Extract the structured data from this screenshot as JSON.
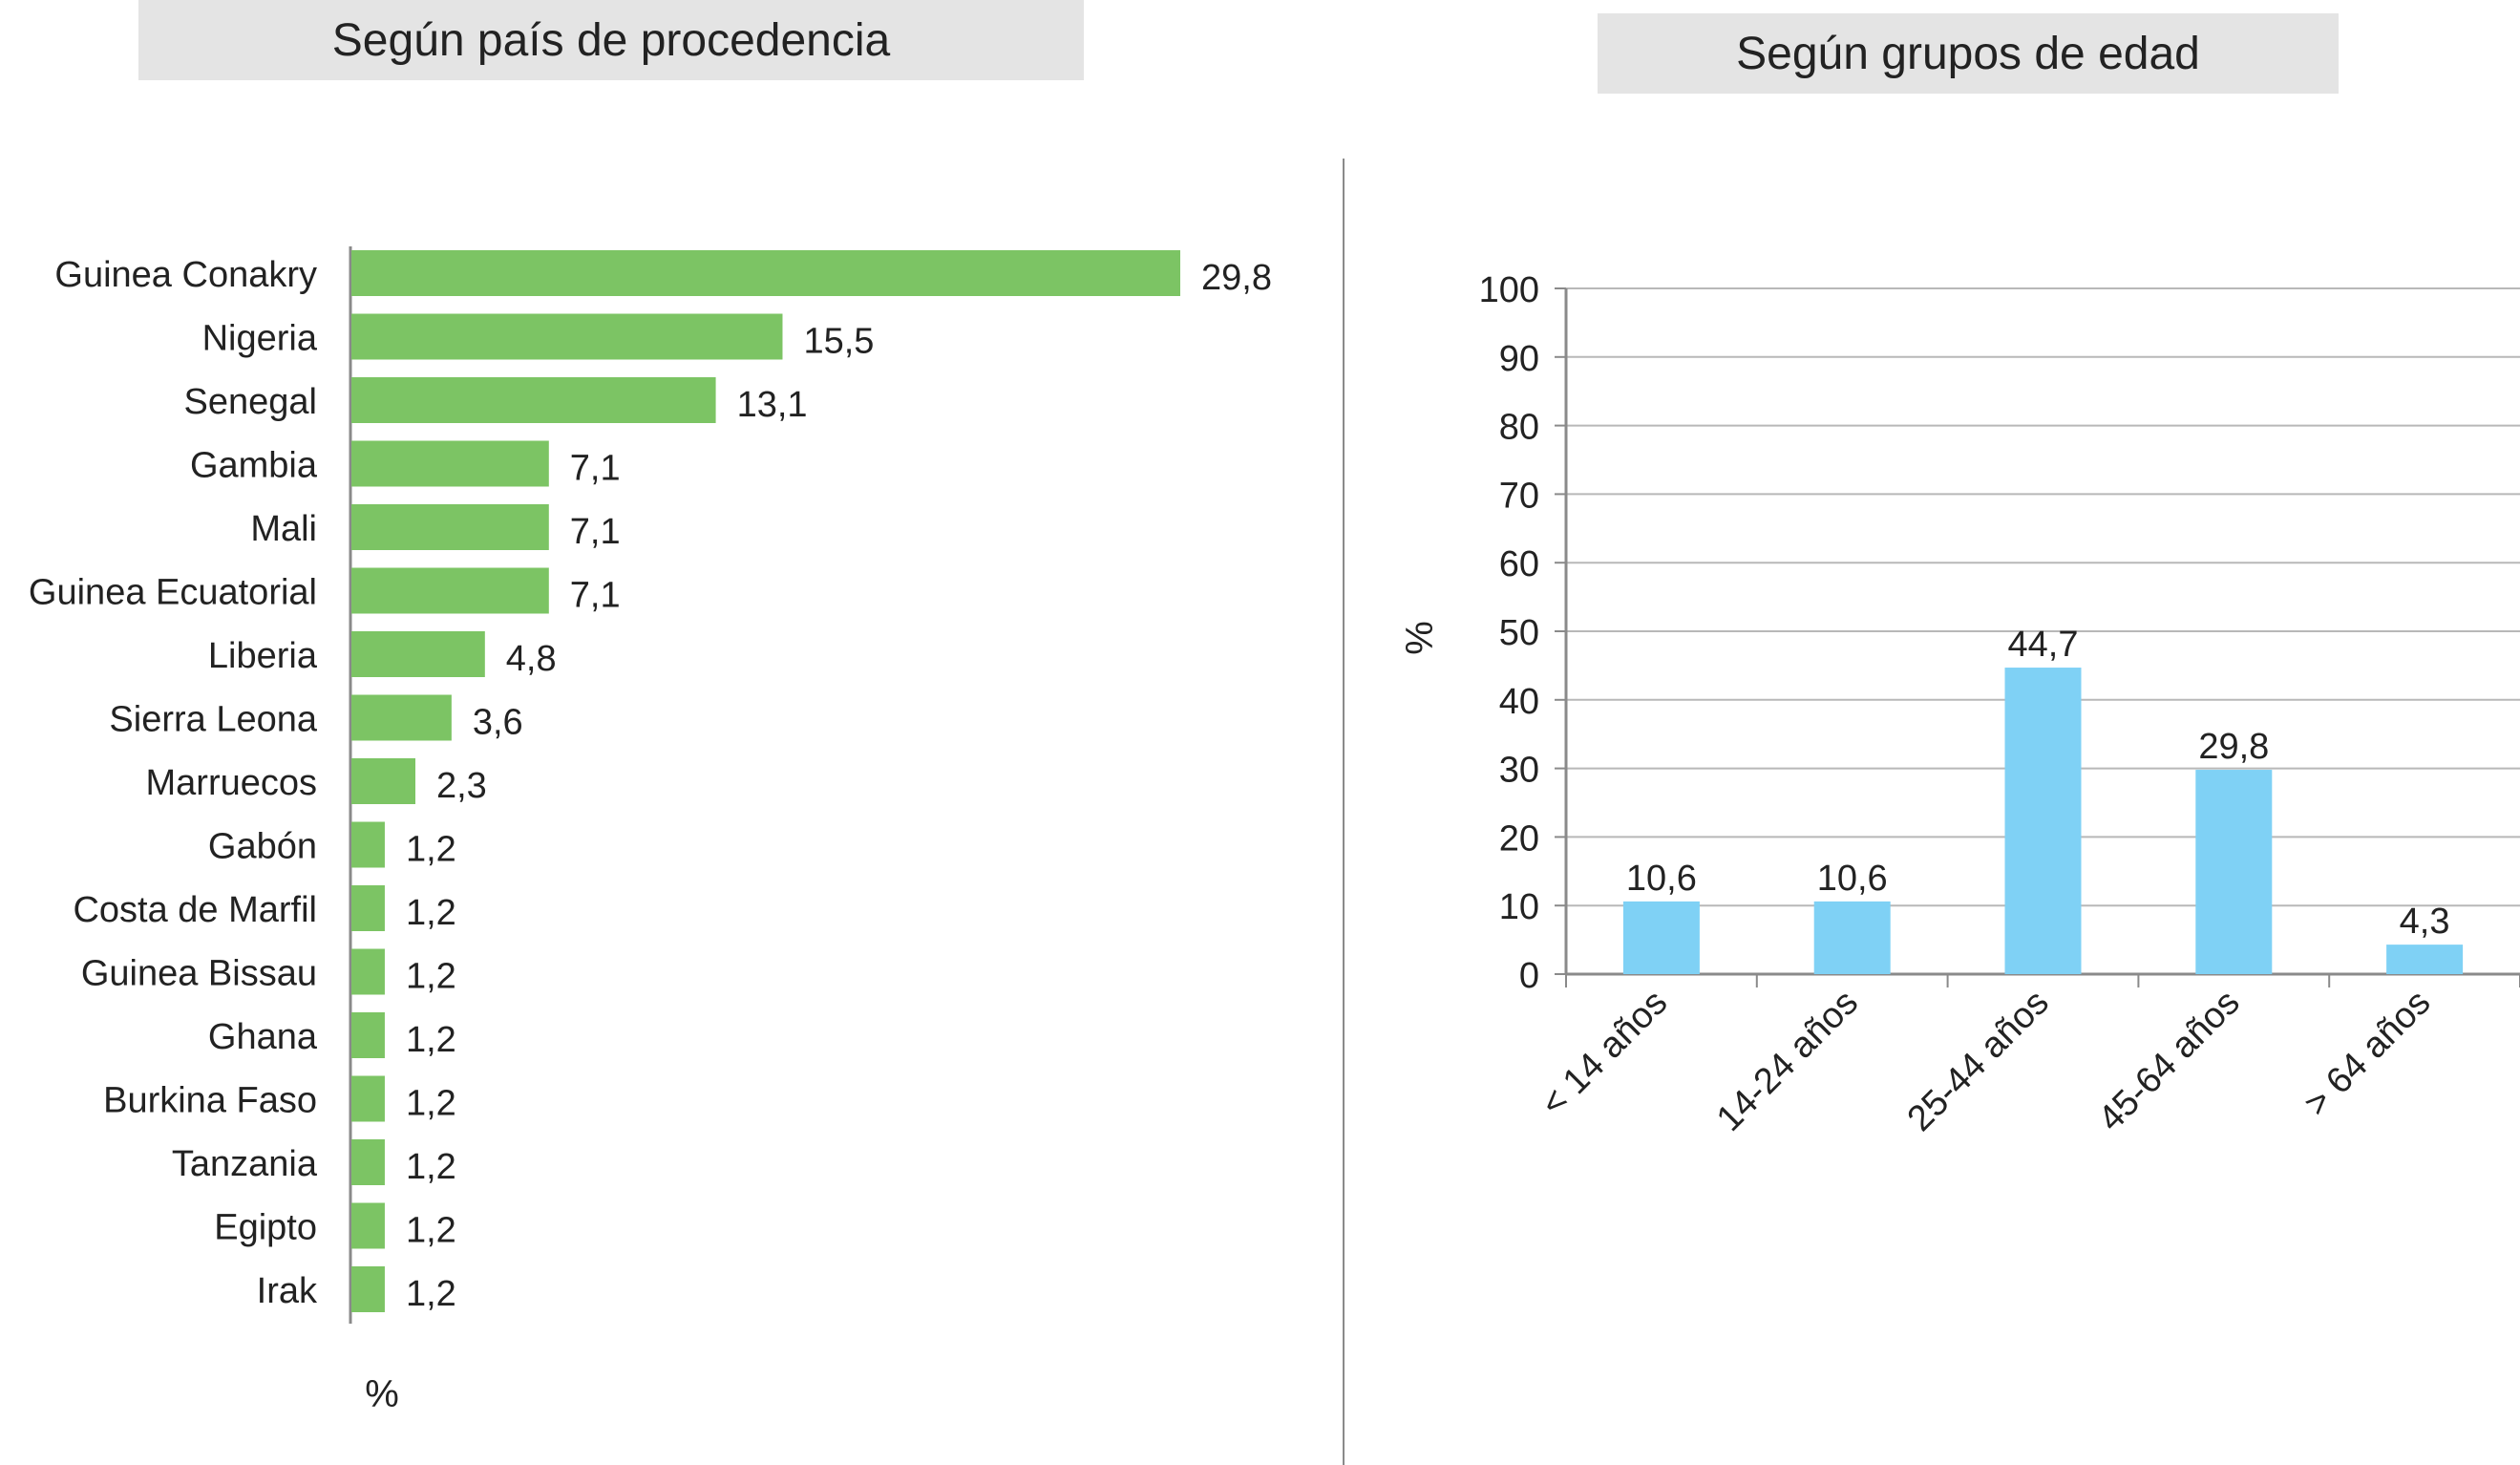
{
  "colors": {
    "green_bar": "#7cc464",
    "blue_bar": "#7fd1f5",
    "axis": "#8a8a8a",
    "grid": "#b8b8b8",
    "title_bg": "#e4e4e4"
  },
  "left_title": "Según país de procedencia",
  "right_title": "Según grupos de edad",
  "chart_data": [
    {
      "type": "bar",
      "orientation": "horizontal",
      "title": "Según país de procedencia",
      "xlabel": "%",
      "categories": [
        "Guinea Conakry",
        "Nigeria",
        "Senegal",
        "Gambia",
        "Mali",
        "Guinea Ecuatorial",
        "Liberia",
        "Sierra Leona",
        "Marruecos",
        "Gabón",
        "Costa de Marfil",
        "Guinea Bissau",
        "Ghana",
        "Burkina Faso",
        "Tanzania",
        "Egipto",
        "Irak"
      ],
      "values": [
        29.8,
        15.5,
        13.1,
        7.1,
        7.1,
        7.1,
        4.8,
        3.6,
        2.3,
        1.2,
        1.2,
        1.2,
        1.2,
        1.2,
        1.2,
        1.2,
        1.2
      ],
      "data_labels": [
        "29,8",
        "15,5",
        "13,1",
        "7,1",
        "7,1",
        "7,1",
        "4,8",
        "3,6",
        "2,3",
        "1,2",
        "1,2",
        "1,2",
        "1,2",
        "1,2",
        "1,2",
        "1,2",
        "1,2"
      ],
      "grid": false
    },
    {
      "type": "bar",
      "title": "Según grupos de edad",
      "ylabel": "%",
      "categories": [
        "< 14 años",
        "14-24 años",
        "25-44 años",
        "45-64 años",
        "> 64 años"
      ],
      "values": [
        10.6,
        10.6,
        44.7,
        29.8,
        4.3
      ],
      "data_labels": [
        "10,6",
        "10,6",
        "44,7",
        "29,8",
        "4,3"
      ],
      "ylim": [
        0,
        100
      ],
      "yticks": [
        "0",
        "10",
        "20",
        "30",
        "40",
        "50",
        "60",
        "70",
        "80",
        "90",
        "100"
      ],
      "grid": true
    }
  ]
}
